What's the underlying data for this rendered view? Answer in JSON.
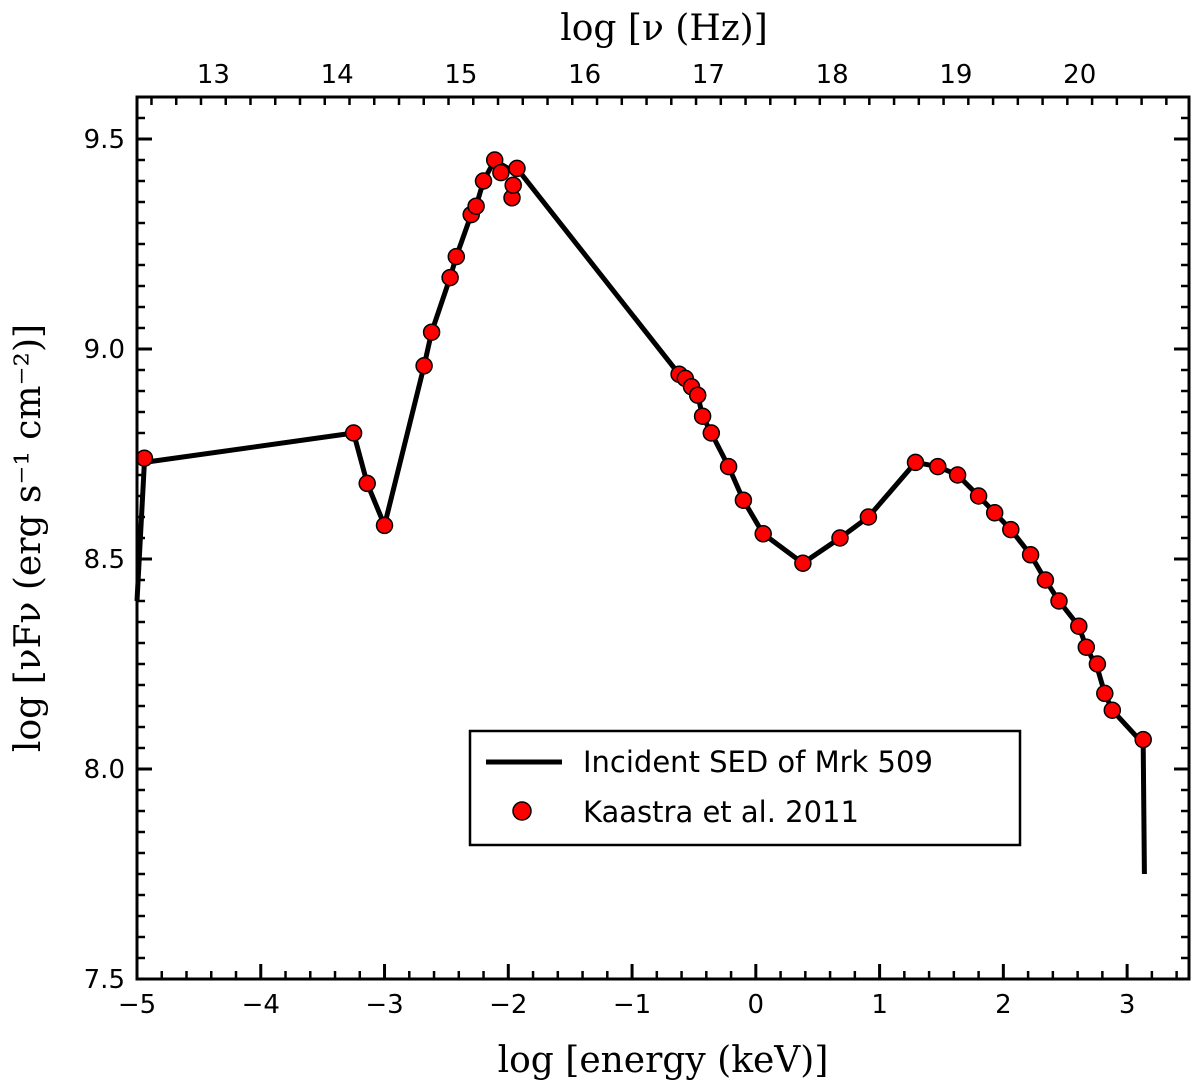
{
  "chart_data": {
    "type": "line",
    "x_axis": {
      "label": "log [energy (keV)]",
      "range": [
        -5.0,
        3.5
      ],
      "ticks": [
        -5,
        -4,
        -3,
        -2,
        -1,
        0,
        1,
        2,
        3
      ],
      "tick_labels": [
        "−5",
        "−4",
        "−3",
        "−2",
        "−1",
        "0",
        "1",
        "2",
        "3"
      ]
    },
    "top_axis": {
      "label": "log [ν (Hz)]",
      "ticks": [
        13,
        14,
        15,
        16,
        17,
        18,
        19,
        20
      ],
      "tick_labels": [
        "13",
        "14",
        "15",
        "16",
        "17",
        "18",
        "19",
        "20"
      ]
    },
    "y_axis": {
      "label": "log [νFν (erg s⁻¹ cm⁻²)]",
      "range": [
        7.5,
        9.6
      ],
      "ticks": [
        7.5,
        8.0,
        8.5,
        9.0,
        9.5
      ],
      "tick_labels": [
        "7.5",
        "8.0",
        "8.5",
        "9.0",
        "9.5"
      ]
    },
    "grid": false,
    "legend": {
      "placement": "lower-right",
      "entries": [
        {
          "label": "Incident SED of Mrk 509",
          "style": "line",
          "color": "#000000"
        },
        {
          "label": "Kaastra et al. 2011",
          "style": "marker",
          "color": "#ff0000"
        }
      ]
    },
    "series": [
      {
        "name": "Incident SED of Mrk 509",
        "kind": "line",
        "color": "#000000",
        "points": [
          [
            -5.0,
            8.4
          ],
          [
            -4.94,
            8.73
          ],
          [
            -3.25,
            8.8
          ],
          [
            -3.14,
            8.68
          ],
          [
            -3.0,
            8.58
          ],
          [
            -2.68,
            8.96
          ],
          [
            -2.62,
            9.04
          ],
          [
            -2.47,
            9.17
          ],
          [
            -2.42,
            9.22
          ],
          [
            -2.3,
            9.32
          ],
          [
            -2.26,
            9.34
          ],
          [
            -2.2,
            9.4
          ],
          [
            -2.11,
            9.45
          ],
          [
            -2.06,
            9.44
          ],
          [
            -2.0,
            9.43
          ],
          [
            -1.93,
            9.43
          ],
          [
            -0.62,
            8.94
          ],
          [
            -0.57,
            8.92
          ],
          [
            -0.52,
            8.91
          ],
          [
            -0.47,
            8.89
          ],
          [
            -0.43,
            8.84
          ],
          [
            -0.36,
            8.8
          ],
          [
            -0.22,
            8.72
          ],
          [
            -0.1,
            8.64
          ],
          [
            0.06,
            8.56
          ],
          [
            0.38,
            8.49
          ],
          [
            0.68,
            8.55
          ],
          [
            0.91,
            8.6
          ],
          [
            1.29,
            8.73
          ],
          [
            1.47,
            8.72
          ],
          [
            1.63,
            8.7
          ],
          [
            1.8,
            8.65
          ],
          [
            1.93,
            8.61
          ],
          [
            2.06,
            8.57
          ],
          [
            2.22,
            8.51
          ],
          [
            2.34,
            8.45
          ],
          [
            2.45,
            8.4
          ],
          [
            2.61,
            8.34
          ],
          [
            2.67,
            8.29
          ],
          [
            2.76,
            8.24
          ],
          [
            2.82,
            8.18
          ],
          [
            2.88,
            8.14
          ],
          [
            3.13,
            8.06
          ],
          [
            3.14,
            7.75
          ]
        ]
      },
      {
        "name": "Kaastra et al. 2011",
        "kind": "scatter",
        "color": "#ff0000",
        "edge_color": "#000000",
        "points": [
          [
            -4.94,
            8.74
          ],
          [
            -3.25,
            8.8
          ],
          [
            -3.14,
            8.68
          ],
          [
            -3.0,
            8.58
          ],
          [
            -2.68,
            8.96
          ],
          [
            -2.62,
            9.04
          ],
          [
            -2.47,
            9.17
          ],
          [
            -2.42,
            9.22
          ],
          [
            -2.3,
            9.32
          ],
          [
            -2.26,
            9.34
          ],
          [
            -2.2,
            9.4
          ],
          [
            -2.11,
            9.45
          ],
          [
            -2.06,
            9.42
          ],
          [
            -1.97,
            9.36
          ],
          [
            -1.96,
            9.39
          ],
          [
            -1.93,
            9.43
          ],
          [
            -0.62,
            8.94
          ],
          [
            -0.57,
            8.93
          ],
          [
            -0.52,
            8.91
          ],
          [
            -0.47,
            8.89
          ],
          [
            -0.43,
            8.84
          ],
          [
            -0.36,
            8.8
          ],
          [
            -0.22,
            8.72
          ],
          [
            -0.1,
            8.64
          ],
          [
            0.06,
            8.56
          ],
          [
            0.38,
            8.49
          ],
          [
            0.68,
            8.55
          ],
          [
            0.91,
            8.6
          ],
          [
            1.29,
            8.73
          ],
          [
            1.47,
            8.72
          ],
          [
            1.63,
            8.7
          ],
          [
            1.8,
            8.65
          ],
          [
            1.93,
            8.61
          ],
          [
            2.06,
            8.57
          ],
          [
            2.22,
            8.51
          ],
          [
            2.34,
            8.45
          ],
          [
            2.45,
            8.4
          ],
          [
            2.61,
            8.34
          ],
          [
            2.67,
            8.29
          ],
          [
            2.76,
            8.25
          ],
          [
            2.82,
            8.18
          ],
          [
            2.88,
            8.14
          ],
          [
            3.13,
            8.07
          ]
        ]
      }
    ]
  }
}
